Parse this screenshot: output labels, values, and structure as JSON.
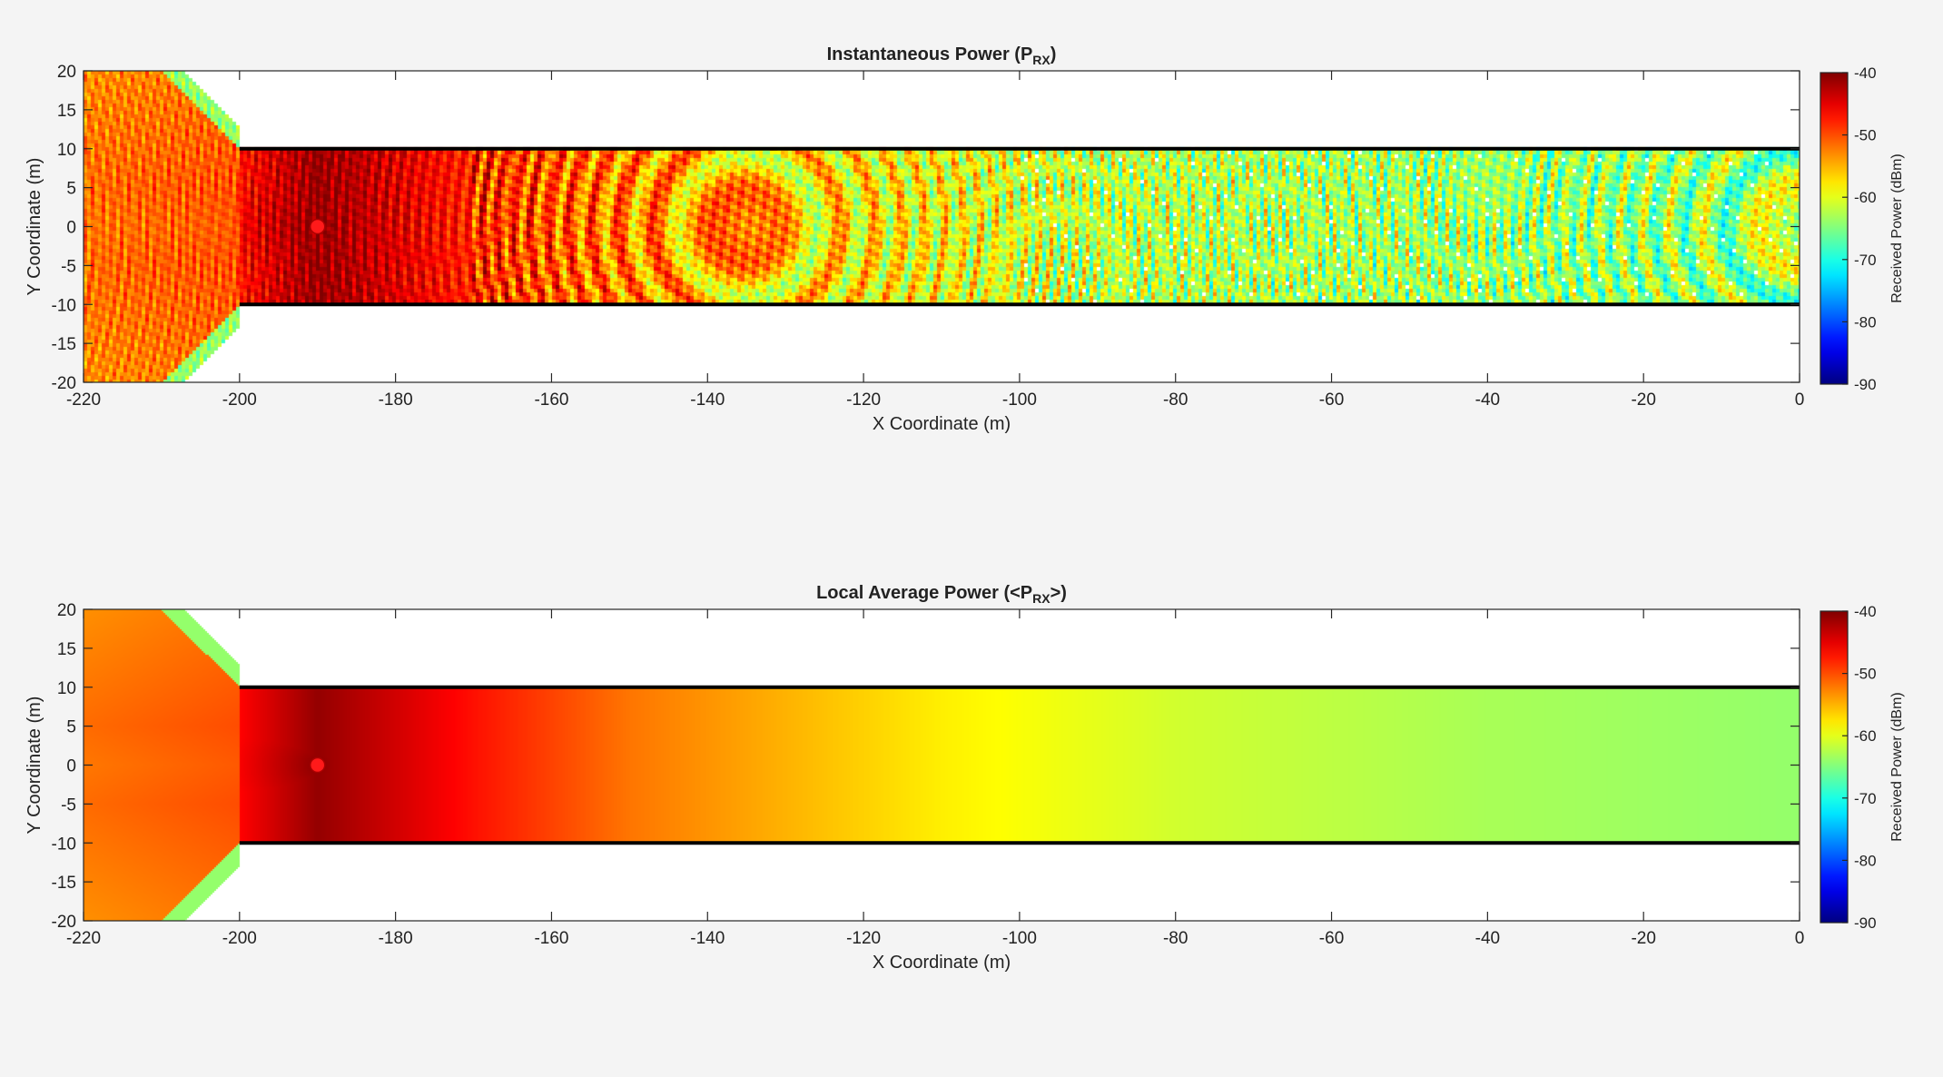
{
  "colors": {
    "background": "#f4f4f4",
    "wall": "#000000",
    "transmitter": "#ff1a1a"
  },
  "chart_data": [
    {
      "type": "heatmap",
      "title": "Instantaneous  Power  (P",
      "title_sub": "RX",
      "title_suffix": ")",
      "xlabel": "X Coordinate (m)",
      "ylabel": "Y Coordinate (m)",
      "xlim": [
        -220,
        0
      ],
      "ylim": [
        -20,
        20
      ],
      "xticks": [
        -220,
        -200,
        -180,
        -160,
        -140,
        -120,
        -100,
        -80,
        -60,
        -40,
        -20,
        0
      ],
      "yticks": [
        20,
        15,
        10,
        5,
        0,
        -5,
        -10,
        -15,
        -20
      ],
      "colorbar": {
        "label": "Received Power (dBm)",
        "range": [
          -90,
          -40
        ],
        "ticks": [
          -40,
          -50,
          -60,
          -70,
          -80,
          -90
        ],
        "colormap": "jet"
      },
      "corridor": {
        "x": [
          -200,
          0
        ],
        "y": [
          -10,
          10
        ]
      },
      "wedge_region": {
        "x": [
          -220,
          -200
        ],
        "y": [
          -20,
          20
        ]
      },
      "transmitter": {
        "x": -190,
        "y": 0
      },
      "field": "instantaneous (multipath fading)",
      "power_profile_dBm": [
        {
          "x": -220,
          "power": -52
        },
        {
          "x": -205,
          "power": -50
        },
        {
          "x": -190,
          "power": -41
        },
        {
          "x": -170,
          "power": -48
        },
        {
          "x": -150,
          "power": -53
        },
        {
          "x": -130,
          "power": -57
        },
        {
          "x": -110,
          "power": -59
        },
        {
          "x": -90,
          "power": -62
        },
        {
          "x": -60,
          "power": -63
        },
        {
          "x": -30,
          "power": -64
        },
        {
          "x": 0,
          "power": -64
        }
      ]
    },
    {
      "type": "heatmap",
      "title": "Local  Average  Power  (<P",
      "title_sub": "RX",
      "title_suffix": ">)",
      "xlabel": "X Coordinate (m)",
      "ylabel": "Y Coordinate (m)",
      "xlim": [
        -220,
        0
      ],
      "ylim": [
        -20,
        20
      ],
      "xticks": [
        -220,
        -200,
        -180,
        -160,
        -140,
        -120,
        -100,
        -80,
        -60,
        -40,
        -20,
        0
      ],
      "yticks": [
        20,
        15,
        10,
        5,
        0,
        -5,
        -10,
        -15,
        -20
      ],
      "colorbar": {
        "label": "Received Power (dBm)",
        "range": [
          -90,
          -40
        ],
        "ticks": [
          -40,
          -50,
          -60,
          -70,
          -80,
          -90
        ],
        "colormap": "jet"
      },
      "corridor": {
        "x": [
          -200,
          0
        ],
        "y": [
          -10,
          10
        ]
      },
      "wedge_region": {
        "x": [
          -220,
          -200
        ],
        "y": [
          -20,
          20
        ]
      },
      "transmitter": {
        "x": -190,
        "y": 0
      },
      "field": "local average",
      "power_profile_dBm": [
        {
          "x": -220,
          "power": -52
        },
        {
          "x": -205,
          "power": -49
        },
        {
          "x": -190,
          "power": -41
        },
        {
          "x": -170,
          "power": -47
        },
        {
          "x": -150,
          "power": -52
        },
        {
          "x": -130,
          "power": -55
        },
        {
          "x": -110,
          "power": -58
        },
        {
          "x": -100,
          "power": -59
        },
        {
          "x": -80,
          "power": -61
        },
        {
          "x": -40,
          "power": -63
        },
        {
          "x": 0,
          "power": -64
        }
      ]
    }
  ]
}
